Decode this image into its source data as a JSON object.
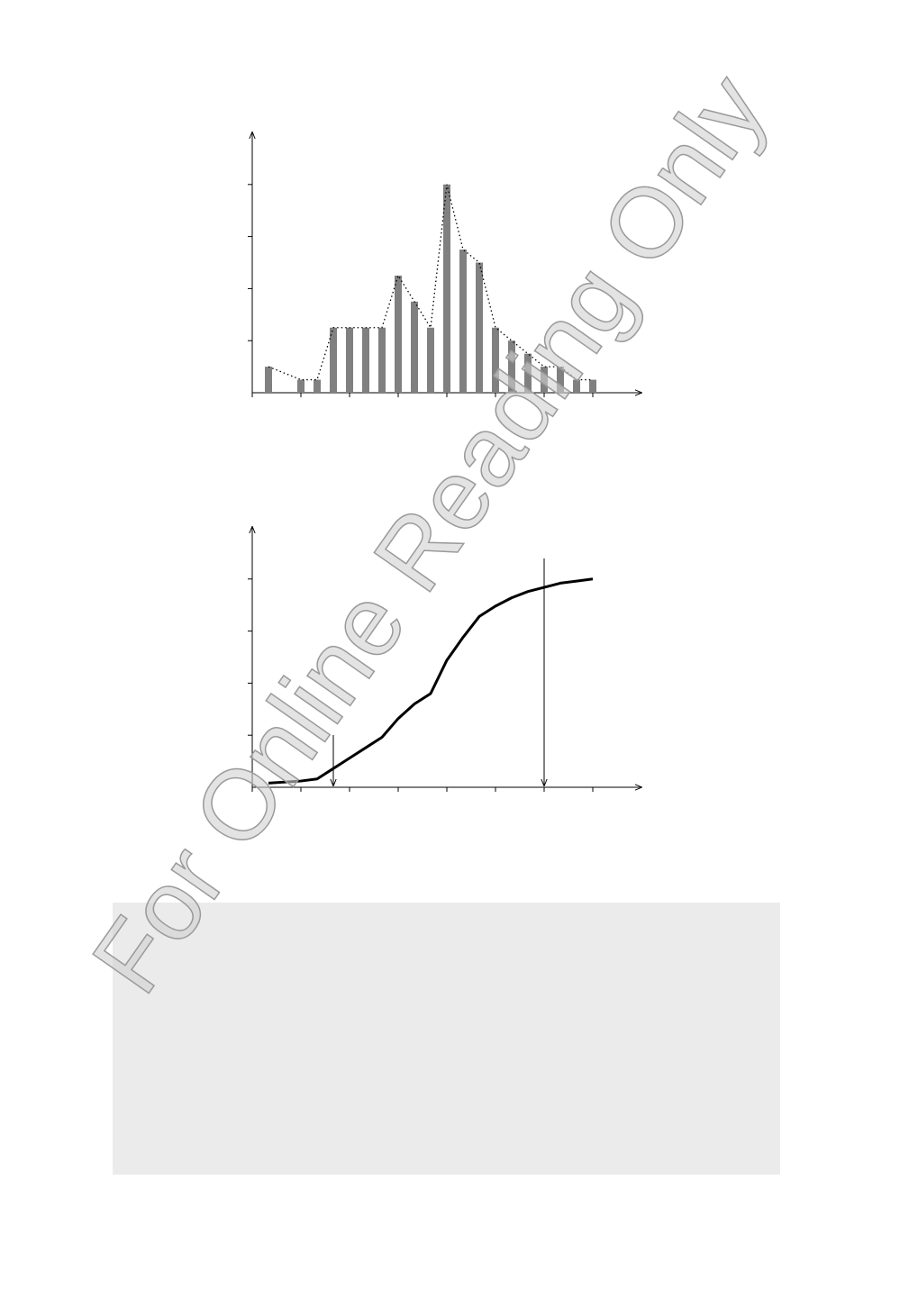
{
  "watermark": "For Online Reading Only",
  "chart_data": [
    {
      "type": "bar",
      "color": "#808080",
      "line_style": "dotted",
      "x": [
        1,
        3,
        4,
        5,
        6,
        7,
        8,
        9,
        10,
        11,
        12,
        13,
        14,
        15,
        16,
        17,
        18,
        19,
        20,
        21
      ],
      "values": [
        2,
        1,
        1,
        5,
        5,
        5,
        5,
        9,
        7,
        5,
        16,
        11,
        10,
        5,
        4,
        3,
        2,
        2,
        1,
        1
      ],
      "xlim": [
        0,
        24
      ],
      "xticks": [
        0,
        3,
        6,
        9,
        12,
        15,
        18,
        21
      ],
      "ylim": [
        0,
        20
      ],
      "yticks": [
        4,
        8,
        12,
        16
      ]
    },
    {
      "type": "line",
      "color": "#000000",
      "x": [
        1,
        3,
        4,
        5,
        6,
        7,
        8,
        9,
        10,
        11,
        12,
        13,
        14,
        15,
        16,
        17,
        18,
        19,
        20,
        21
      ],
      "values": [
        2,
        3,
        4,
        9,
        14,
        19,
        24,
        33,
        40,
        45,
        61,
        72,
        82,
        87,
        91,
        94,
        96,
        98,
        99,
        100
      ],
      "xlim": [
        0,
        24
      ],
      "xticks": [
        0,
        3,
        6,
        9,
        12,
        15,
        18,
        21
      ],
      "ylim": [
        0,
        125
      ],
      "yticks": [
        25,
        50,
        75,
        100
      ]
    }
  ]
}
